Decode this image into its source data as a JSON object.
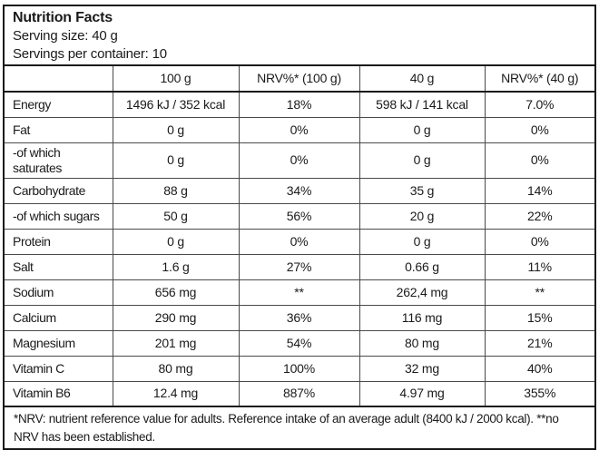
{
  "panel": {
    "title": "Nutrition Facts",
    "serving_size": "Serving size: 40 g",
    "servings_per_container": "Servings per container: 10",
    "footnote": "*NRV: nutrient reference value for adults. Reference intake of an average adult (8400 kJ / 2000 kcal). **no NRV has been established."
  },
  "colors": {
    "background": "#ffffff",
    "text": "#1a1a1a",
    "border_thick": "#1a1a1a",
    "border_thin": "#4a4a4a"
  },
  "table": {
    "columns": [
      "",
      "100 g",
      "NRV%* (100 g)",
      "40 g",
      "NRV%* (40 g)"
    ],
    "rows": [
      {
        "name": "Energy",
        "per_100g": "1496 kJ / 352 kcal",
        "nrv_100g": "18%",
        "per_40g": "598 kJ / 141 kcal",
        "nrv_40g": "7.0%"
      },
      {
        "name": "Fat",
        "per_100g": "0 g",
        "nrv_100g": "0%",
        "per_40g": "0 g",
        "nrv_40g": "0%"
      },
      {
        "name": "-of which saturates",
        "per_100g": "0 g",
        "nrv_100g": "0%",
        "per_40g": "0 g",
        "nrv_40g": "0%"
      },
      {
        "name": "Carbohydrate",
        "per_100g": "88 g",
        "nrv_100g": "34%",
        "per_40g": "35 g",
        "nrv_40g": "14%"
      },
      {
        "name": "-of which sugars",
        "per_100g": "50 g",
        "nrv_100g": "56%",
        "per_40g": "20 g",
        "nrv_40g": "22%"
      },
      {
        "name": "Protein",
        "per_100g": "0 g",
        "nrv_100g": "0%",
        "per_40g": "0 g",
        "nrv_40g": "0%"
      },
      {
        "name": "Salt",
        "per_100g": "1.6 g",
        "nrv_100g": "27%",
        "per_40g": "0.66 g",
        "nrv_40g": "11%"
      },
      {
        "name": "Sodium",
        "per_100g": "656 mg",
        "nrv_100g": "**",
        "per_40g": "262,4 mg",
        "nrv_40g": "**"
      },
      {
        "name": "Calcium",
        "per_100g": "290 mg",
        "nrv_100g": "36%",
        "per_40g": "116 mg",
        "nrv_40g": "15%"
      },
      {
        "name": "Magnesium",
        "per_100g": "201 mg",
        "nrv_100g": "54%",
        "per_40g": "80 mg",
        "nrv_40g": "21%"
      },
      {
        "name": "Vitamin C",
        "per_100g": "80 mg",
        "nrv_100g": "100%",
        "per_40g": "32 mg",
        "nrv_40g": "40%"
      },
      {
        "name": "Vitamin B6",
        "per_100g": "12.4 mg",
        "nrv_100g": "887%",
        "per_40g": "4.97 mg",
        "nrv_40g": "355%"
      }
    ]
  }
}
